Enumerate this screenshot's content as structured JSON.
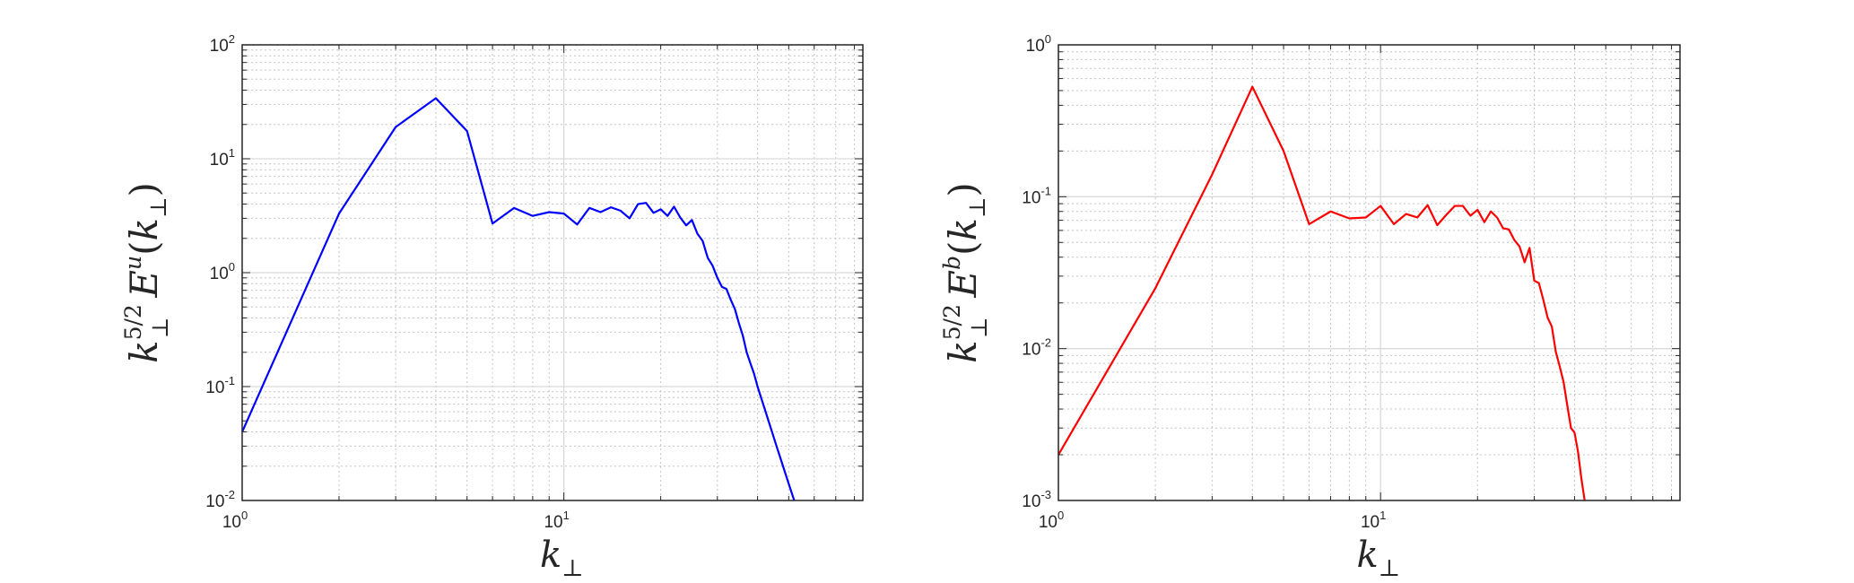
{
  "chart_data": [
    {
      "type": "line",
      "title": "",
      "x_scale": "log",
      "y_scale": "log",
      "xlim": [
        1,
        85
      ],
      "ylim": [
        0.01,
        100
      ],
      "grid": true,
      "x_ticks": [
        {
          "base": "10",
          "exp": "0",
          "value": 1
        },
        {
          "base": "10",
          "exp": "1",
          "value": 10
        }
      ],
      "y_ticks": [
        {
          "base": "10",
          "exp": "-2",
          "value": 0.01
        },
        {
          "base": "10",
          "exp": "-1",
          "value": 0.1
        },
        {
          "base": "10",
          "exp": "0",
          "value": 1
        },
        {
          "base": "10",
          "exp": "1",
          "value": 10
        },
        {
          "base": "10",
          "exp": "2",
          "value": 100
        }
      ],
      "xlabel": {
        "base": "k",
        "sub": "⊥"
      },
      "ylabel": {
        "k": "k",
        "k_sub": "⊥",
        "k_sup": "5/2",
        "E": "E",
        "E_sup": "u",
        "arg_open": "(",
        "arg_k": "k",
        "arg_sub": "⊥",
        "arg_close": ")"
      },
      "series": [
        {
          "color": "#0000ff",
          "x": [
            1,
            2,
            3,
            4,
            5,
            6,
            7,
            8,
            9,
            10,
            11,
            12,
            13,
            14,
            15,
            16,
            17,
            18,
            19,
            20,
            21,
            22,
            23,
            24,
            25,
            26,
            27,
            28,
            29,
            30,
            31,
            32,
            33,
            34,
            35,
            36,
            37,
            38,
            39,
            40,
            42,
            44,
            46,
            48,
            50,
            52
          ],
          "y": [
            0.04,
            3.3,
            19,
            34,
            17.5,
            2.7,
            3.7,
            3.15,
            3.4,
            3.3,
            2.65,
            3.7,
            3.4,
            3.75,
            3.5,
            3.0,
            4.0,
            4.1,
            3.35,
            3.6,
            3.15,
            3.8,
            3.05,
            2.6,
            2.9,
            2.2,
            1.9,
            1.35,
            1.15,
            0.9,
            0.75,
            0.72,
            0.58,
            0.48,
            0.36,
            0.28,
            0.2,
            0.16,
            0.13,
            0.1,
            0.065,
            0.043,
            0.029,
            0.02,
            0.014,
            0.01
          ]
        }
      ]
    },
    {
      "type": "line",
      "title": "",
      "x_scale": "log",
      "y_scale": "log",
      "xlim": [
        1,
        85
      ],
      "ylim": [
        0.001,
        1
      ],
      "grid": true,
      "x_ticks": [
        {
          "base": "10",
          "exp": "0",
          "value": 1
        },
        {
          "base": "10",
          "exp": "1",
          "value": 10
        }
      ],
      "y_ticks": [
        {
          "base": "10",
          "exp": "-3",
          "value": 0.001
        },
        {
          "base": "10",
          "exp": "-2",
          "value": 0.01
        },
        {
          "base": "10",
          "exp": "-1",
          "value": 0.1
        },
        {
          "base": "10",
          "exp": "0",
          "value": 1
        }
      ],
      "xlabel": {
        "base": "k",
        "sub": "⊥"
      },
      "ylabel": {
        "k": "k",
        "k_sub": "⊥",
        "k_sup": "5/2",
        "E": "E",
        "E_sup": "b",
        "arg_open": "(",
        "arg_k": "k",
        "arg_sub": "⊥",
        "arg_close": ")"
      },
      "series": [
        {
          "color": "#ff0000",
          "x": [
            1,
            2,
            3,
            4,
            5,
            6,
            7,
            8,
            9,
            10,
            11,
            12,
            13,
            14,
            15,
            16,
            17,
            18,
            19,
            20,
            21,
            22,
            23,
            24,
            25,
            26,
            27,
            28,
            29,
            30,
            31,
            32,
            33,
            34,
            35,
            36,
            37,
            38,
            39,
            40,
            41,
            42,
            43
          ],
          "y": [
            0.002,
            0.025,
            0.14,
            0.53,
            0.2,
            0.066,
            0.08,
            0.072,
            0.073,
            0.087,
            0.066,
            0.077,
            0.073,
            0.088,
            0.065,
            0.076,
            0.087,
            0.087,
            0.075,
            0.082,
            0.068,
            0.08,
            0.073,
            0.062,
            0.061,
            0.052,
            0.047,
            0.037,
            0.046,
            0.028,
            0.027,
            0.021,
            0.016,
            0.014,
            0.0095,
            0.0076,
            0.006,
            0.0042,
            0.003,
            0.0028,
            0.0021,
            0.0014,
            0.001
          ]
        }
      ]
    }
  ]
}
